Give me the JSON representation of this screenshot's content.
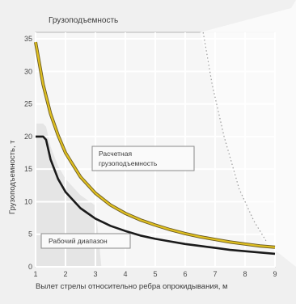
{
  "chart_data": {
    "type": "line",
    "title": "Грузоподъемность",
    "xlabel": "Вылет стрелы относительно ребра опрокидывания, м",
    "ylabel": "Грузоподъемность, т",
    "xlim": [
      1,
      9
    ],
    "ylim": [
      0,
      36
    ],
    "x_ticks": [
      1,
      2,
      3,
      4,
      5,
      6,
      7,
      8,
      9
    ],
    "y_ticks": [
      0,
      5,
      10,
      15,
      20,
      25,
      30,
      35
    ],
    "grid": true,
    "series": [
      {
        "name": "Расчетная грузоподъемность",
        "color": "#e0c020",
        "x": [
          1.0,
          1.25,
          1.5,
          1.75,
          2.0,
          2.5,
          3.0,
          3.5,
          4.0,
          4.5,
          5.0,
          5.5,
          6.0,
          6.5,
          7.0,
          7.5,
          8.0,
          8.5,
          9.0
        ],
        "y": [
          34.5,
          28.0,
          23.5,
          20.2,
          17.5,
          13.8,
          11.3,
          9.5,
          8.2,
          7.2,
          6.4,
          5.7,
          5.1,
          4.6,
          4.2,
          3.8,
          3.5,
          3.2,
          3.0
        ]
      },
      {
        "name": "Рабочий диапазон",
        "color": "#1a1a1a",
        "x": [
          1.0,
          1.25,
          1.35,
          1.5,
          1.75,
          2.0,
          2.5,
          3.0,
          3.5,
          4.0,
          4.5,
          5.0,
          5.5,
          6.0,
          6.5,
          7.0,
          7.5,
          8.0,
          8.5,
          9.0
        ],
        "y": [
          20.0,
          20.0,
          19.5,
          16.5,
          13.5,
          11.5,
          9.0,
          7.4,
          6.3,
          5.5,
          4.8,
          4.3,
          3.9,
          3.5,
          3.2,
          2.9,
          2.6,
          2.4,
          2.2,
          2.0
        ]
      }
    ],
    "annotations": [
      {
        "text_lines": [
          "Расчетная",
          "грузоподъемность"
        ]
      },
      {
        "text_lines": [
          "Рабочий диапазон"
        ]
      }
    ]
  }
}
